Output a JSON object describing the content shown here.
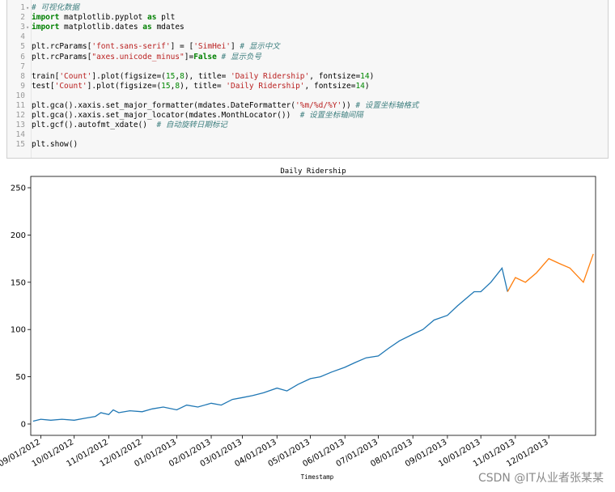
{
  "code_cell": {
    "lines": [
      {
        "n": "1",
        "fold": true,
        "parts": [
          [
            "cm",
            "# 可视化数据"
          ]
        ]
      },
      {
        "n": "2",
        "parts": [
          [
            "kw",
            "import"
          ],
          [
            "",
            " matplotlib.pyplot "
          ],
          [
            "kw",
            "as"
          ],
          [
            "",
            " plt"
          ]
        ]
      },
      {
        "n": "3",
        "fold": true,
        "parts": [
          [
            "kw",
            "import"
          ],
          [
            "",
            " matplotlib.dates "
          ],
          [
            "kw",
            "as"
          ],
          [
            "",
            " mdates"
          ]
        ]
      },
      {
        "n": "4",
        "parts": []
      },
      {
        "n": "5",
        "parts": [
          [
            "",
            "plt.rcParams["
          ],
          [
            "str",
            "'font.sans-serif'"
          ],
          [
            "",
            "] = ["
          ],
          [
            "str",
            "'SimHei'"
          ],
          [
            "",
            "] "
          ],
          [
            "cm",
            "# 显示中文"
          ]
        ]
      },
      {
        "n": "6",
        "parts": [
          [
            "",
            "plt.rcParams["
          ],
          [
            "str",
            "\"axes.unicode_minus\""
          ],
          [
            "",
            "]="
          ],
          [
            "kw",
            "False"
          ],
          [
            "",
            " "
          ],
          [
            "cm",
            "# 显示负号"
          ]
        ]
      },
      {
        "n": "7",
        "parts": []
      },
      {
        "n": "8",
        "parts": [
          [
            "",
            "train["
          ],
          [
            "str",
            "'Count'"
          ],
          [
            "",
            "].plot(figsize=("
          ],
          [
            "num",
            "15"
          ],
          [
            "",
            ","
          ],
          [
            "num",
            "8"
          ],
          [
            "",
            "), title= "
          ],
          [
            "str",
            "'Daily Ridership'"
          ],
          [
            "",
            ", fontsize="
          ],
          [
            "num",
            "14"
          ],
          [
            "",
            ")"
          ]
        ]
      },
      {
        "n": "9",
        "parts": [
          [
            "",
            "test["
          ],
          [
            "str",
            "'Count'"
          ],
          [
            "",
            "].plot(figsize=("
          ],
          [
            "num",
            "15"
          ],
          [
            "",
            ","
          ],
          [
            "num",
            "8"
          ],
          [
            "",
            "), title= "
          ],
          [
            "str",
            "'Daily Ridership'"
          ],
          [
            "",
            ", fontsize="
          ],
          [
            "num",
            "14"
          ],
          [
            "",
            ")"
          ]
        ]
      },
      {
        "n": "10",
        "parts": []
      },
      {
        "n": "11",
        "parts": [
          [
            "",
            "plt.gca().xaxis.set_major_formatter(mdates.DateFormatter("
          ],
          [
            "str",
            "'%m/%d/%Y'"
          ],
          [
            "",
            ")) "
          ],
          [
            "cm",
            "# 设置坐标轴格式"
          ]
        ]
      },
      {
        "n": "12",
        "parts": [
          [
            "",
            "plt.gca().xaxis.set_major_locator(mdates.MonthLocator())  "
          ],
          [
            "cm",
            "# 设置坐标轴间隔"
          ]
        ]
      },
      {
        "n": "13",
        "parts": [
          [
            "",
            "plt.gcf().autofmt_xdate()  "
          ],
          [
            "cm",
            "# 自动旋转日期标记"
          ]
        ]
      },
      {
        "n": "14",
        "parts": []
      },
      {
        "n": "15",
        "parts": [
          [
            "",
            "plt.show()"
          ]
        ]
      }
    ]
  },
  "colors": {
    "train": "#1f77b4",
    "test": "#ff7f0e",
    "kw": "#008000",
    "str": "#ba2121",
    "comment": "#408080"
  },
  "chart_data": {
    "type": "line",
    "title": "Daily Ridership",
    "xlabel": "Timestamp",
    "ylabel": "",
    "x_tick_labels": [
      "09/01/2012",
      "10/01/2012",
      "11/01/2012",
      "12/01/2012",
      "01/01/2013",
      "02/01/2013",
      "03/01/2013",
      "04/01/2013",
      "05/01/2013",
      "06/01/2013",
      "07/01/2013",
      "08/01/2013",
      "09/01/2013",
      "10/01/2013",
      "11/01/2013",
      "12/01/2013"
    ],
    "xlim": [
      "2012-08-23",
      "2014-01-12"
    ],
    "y_ticks": [
      0,
      50,
      100,
      150,
      200,
      250
    ],
    "ylim": [
      -12,
      262
    ],
    "grid": false,
    "legend": "none",
    "series": [
      {
        "x": [
          "2012-08-25",
          "2012-09-01",
          "2012-09-10",
          "2012-09-20",
          "2012-10-01",
          "2012-10-10",
          "2012-10-20",
          "2012-10-25",
          "2012-11-01",
          "2012-11-05",
          "2012-11-10",
          "2012-11-20",
          "2012-12-01",
          "2012-12-10",
          "2012-12-20",
          "2013-01-01",
          "2013-01-10",
          "2013-01-20",
          "2013-02-01",
          "2013-02-10",
          "2013-02-20",
          "2013-03-01",
          "2013-03-10",
          "2013-03-20",
          "2013-04-01",
          "2013-04-10",
          "2013-04-20",
          "2013-05-01",
          "2013-05-10",
          "2013-05-20",
          "2013-06-01",
          "2013-06-10",
          "2013-06-20",
          "2013-07-01",
          "2013-07-10",
          "2013-07-20",
          "2013-08-01",
          "2013-08-10",
          "2013-08-20",
          "2013-09-01",
          "2013-09-10",
          "2013-09-20",
          "2013-09-25",
          "2013-10-01",
          "2013-10-10",
          "2013-10-20",
          "2013-10-25"
        ],
        "y": [
          3,
          5,
          4,
          5,
          4,
          6,
          8,
          12,
          10,
          15,
          12,
          14,
          13,
          16,
          18,
          15,
          20,
          18,
          22,
          20,
          26,
          28,
          30,
          33,
          38,
          35,
          42,
          48,
          50,
          55,
          60,
          65,
          70,
          72,
          80,
          88,
          95,
          100,
          110,
          115,
          125,
          135,
          140,
          140,
          150,
          165,
          140
        ]
      },
      {
        "x": [
          "2013-10-25",
          "2013-11-01",
          "2013-11-10",
          "2013-11-20",
          "2013-12-01",
          "2013-12-10",
          "2013-12-20",
          "2014-01-01",
          "2014-01-10"
        ],
        "y": [
          140,
          155,
          150,
          160,
          175,
          170,
          165,
          150,
          180
        ]
      }
    ]
  },
  "watermark": "CSDN @IT从业者张某某"
}
